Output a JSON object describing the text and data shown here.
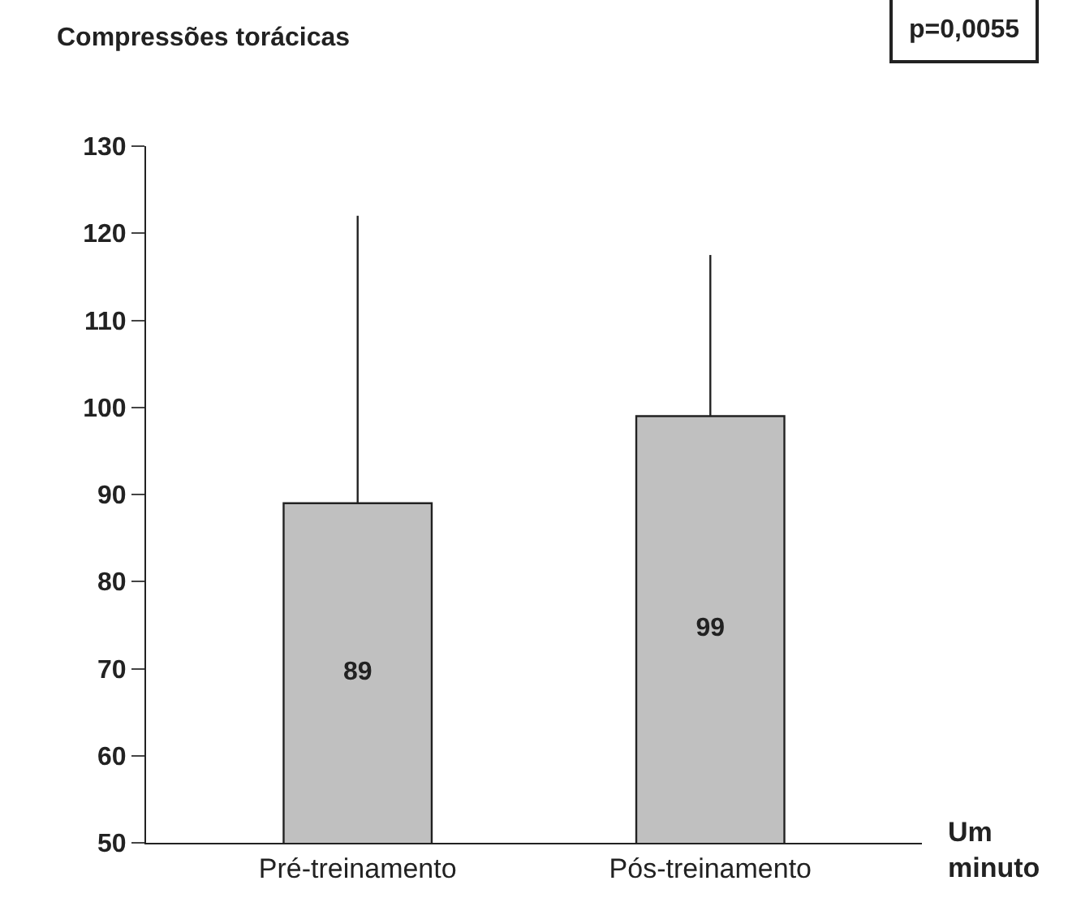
{
  "chart_data": {
    "type": "bar",
    "ylabel": "Compressões torácicas",
    "xlabel": "Um minuto",
    "categories": [
      "Pré-treinamento",
      "Pós-treinamento"
    ],
    "values": [
      89,
      99
    ],
    "color": "#c0c0c0",
    "data_labels": true,
    "errors": [
      [
        89,
        122
      ],
      [
        99,
        117.5
      ]
    ],
    "ylim": [
      50,
      130
    ],
    "yticks": [
      50,
      60,
      70,
      80,
      90,
      100,
      110,
      120,
      130
    ],
    "annotations": [
      "p=0,0055"
    ]
  }
}
